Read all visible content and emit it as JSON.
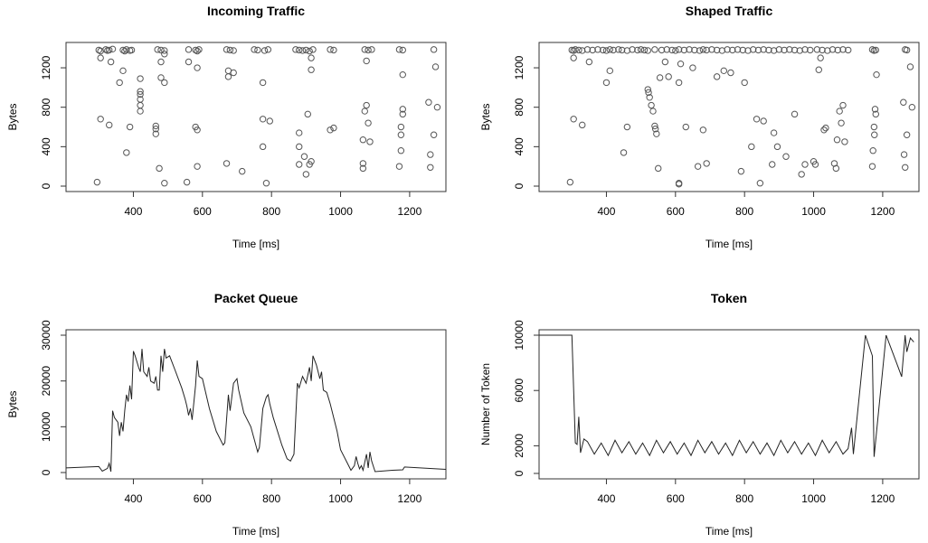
{
  "chart_data": [
    {
      "type": "scatter",
      "title": "Incoming Traffic",
      "xlabel": "Time [ms]",
      "ylabel": "Bytes",
      "x": [
        300,
        305,
        320,
        325,
        330,
        340,
        370,
        375,
        380,
        390,
        395,
        470,
        480,
        490,
        560,
        580,
        585,
        590,
        670,
        680,
        690,
        750,
        760,
        780,
        790,
        870,
        880,
        890,
        900,
        910,
        920,
        970,
        980,
        1070,
        1080,
        1090,
        1170,
        1180,
        1270,
        295,
        305,
        305,
        330,
        335,
        360,
        370,
        380,
        390,
        420,
        420,
        420,
        420,
        420,
        420,
        465,
        465,
        465,
        475,
        480,
        480,
        490,
        490,
        490,
        555,
        560,
        580,
        585,
        585,
        585,
        670,
        675,
        675,
        690,
        715,
        775,
        775,
        775,
        785,
        795,
        880,
        880,
        880,
        895,
        900,
        905,
        910,
        915,
        915,
        915,
        970,
        980,
        1065,
        1065,
        1065,
        1070,
        1075,
        1075,
        1080,
        1085,
        1170,
        1175,
        1175,
        1175,
        1180,
        1180,
        1180,
        1255,
        1260,
        1260,
        1270,
        1275,
        1280
      ],
      "values": [
        1380,
        1370,
        1385,
        1375,
        1380,
        1390,
        1380,
        1370,
        1385,
        1375,
        1380,
        1385,
        1380,
        1375,
        1385,
        1380,
        1370,
        1385,
        1385,
        1380,
        1375,
        1385,
        1380,
        1375,
        1385,
        1385,
        1380,
        1375,
        1380,
        1370,
        1385,
        1385,
        1380,
        1385,
        1380,
        1385,
        1385,
        1380,
        1385,
        40,
        680,
        1300,
        620,
        1260,
        1050,
        1170,
        340,
        600,
        1090,
        960,
        930,
        880,
        820,
        760,
        610,
        580,
        530,
        180,
        1260,
        1100,
        1050,
        30,
        1340,
        40,
        1260,
        600,
        570,
        1200,
        200,
        230,
        1170,
        1110,
        1150,
        150,
        1050,
        680,
        400,
        30,
        660,
        540,
        400,
        220,
        300,
        120,
        730,
        220,
        1300,
        1180,
        250,
        570,
        590,
        470,
        230,
        180,
        760,
        820,
        1270,
        640,
        450,
        200,
        360,
        600,
        520,
        780,
        730,
        1130,
        850,
        320,
        190,
        520,
        1210,
        800
      ],
      "color": "#555555",
      "xlim": [
        205,
        1305
      ],
      "ylim": [
        -55,
        1457
      ],
      "xticks": [
        400,
        600,
        800,
        1000,
        1200
      ],
      "yticks": [
        0,
        400,
        800,
        1200
      ]
    },
    {
      "type": "scatter",
      "title": "Shaped Traffic",
      "xlabel": "Time [ms]",
      "ylabel": "Bytes",
      "x": [
        300,
        305,
        310,
        320,
        330,
        345,
        360,
        375,
        390,
        400,
        410,
        420,
        435,
        445,
        460,
        475,
        490,
        500,
        510,
        520,
        540,
        560,
        575,
        590,
        600,
        610,
        625,
        640,
        655,
        670,
        680,
        690,
        705,
        720,
        735,
        750,
        765,
        780,
        795,
        810,
        825,
        840,
        855,
        870,
        885,
        900,
        915,
        930,
        945,
        960,
        975,
        990,
        1010,
        1025,
        1040,
        1055,
        1070,
        1085,
        1100,
        1170,
        1175,
        1180,
        1265,
        1270,
        295,
        305,
        305,
        330,
        350,
        400,
        410,
        450,
        460,
        520,
        522,
        525,
        530,
        535,
        540,
        542,
        545,
        550,
        555,
        570,
        580,
        610,
        610,
        610,
        615,
        630,
        650,
        665,
        680,
        690,
        720,
        740,
        760,
        790,
        800,
        820,
        835,
        845,
        855,
        880,
        885,
        895,
        920,
        945,
        965,
        975,
        1000,
        1005,
        1015,
        1020,
        1030,
        1035,
        1060,
        1065,
        1068,
        1075,
        1080,
        1085,
        1090,
        1170,
        1172,
        1175,
        1176,
        1178,
        1180,
        1182,
        1260,
        1262,
        1265,
        1270,
        1280,
        1285
      ],
      "values": [
        1380,
        1375,
        1385,
        1380,
        1375,
        1385,
        1380,
        1385,
        1380,
        1375,
        1385,
        1380,
        1385,
        1380,
        1375,
        1385,
        1380,
        1385,
        1380,
        1375,
        1385,
        1380,
        1385,
        1380,
        1375,
        1385,
        1380,
        1385,
        1380,
        1375,
        1385,
        1380,
        1385,
        1380,
        1375,
        1385,
        1380,
        1385,
        1380,
        1375,
        1385,
        1380,
        1385,
        1380,
        1375,
        1385,
        1380,
        1385,
        1380,
        1375,
        1385,
        1380,
        1385,
        1380,
        1375,
        1385,
        1380,
        1385,
        1380,
        1385,
        1375,
        1380,
        1385,
        1380,
        40,
        680,
        1300,
        620,
        1260,
        1050,
        1170,
        340,
        600,
        980,
        950,
        900,
        820,
        760,
        610,
        580,
        530,
        180,
        1100,
        1260,
        1110,
        30,
        20,
        1050,
        1240,
        600,
        1200,
        200,
        570,
        230,
        1110,
        1170,
        1150,
        150,
        1050,
        400,
        680,
        30,
        660,
        220,
        540,
        400,
        300,
        730,
        120,
        220,
        250,
        220,
        1180,
        1300,
        570,
        590,
        230,
        180,
        470,
        760,
        640,
        820,
        450,
        200,
        360,
        600,
        520,
        780,
        730,
        1130,
        850,
        320,
        190,
        520,
        1210,
        800
      ],
      "color": "#555555",
      "xlim": [
        205,
        1305
      ],
      "ylim": [
        -55,
        1457
      ],
      "xticks": [
        400,
        600,
        800,
        1000,
        1200
      ],
      "yticks": [
        0,
        400,
        800,
        1200
      ]
    },
    {
      "type": "line",
      "title": "Packet Queue",
      "xlabel": "Time [ms]",
      "ylabel": "Bytes",
      "x": [
        205,
        300,
        310,
        325,
        330,
        335,
        340,
        345,
        355,
        360,
        365,
        370,
        375,
        380,
        385,
        390,
        395,
        400,
        405,
        415,
        420,
        425,
        430,
        440,
        445,
        450,
        460,
        465,
        470,
        475,
        480,
        485,
        490,
        495,
        505,
        520,
        540,
        550,
        555,
        560,
        565,
        570,
        580,
        585,
        590,
        600,
        620,
        640,
        660,
        665,
        675,
        680,
        690,
        700,
        705,
        720,
        740,
        760,
        765,
        775,
        785,
        790,
        795,
        805,
        830,
        845,
        855,
        865,
        875,
        880,
        890,
        900,
        910,
        915,
        920,
        930,
        940,
        945,
        950,
        960,
        970,
        990,
        1000,
        1020,
        1030,
        1040,
        1045,
        1050,
        1055,
        1060,
        1065,
        1075,
        1080,
        1085,
        1090,
        1100,
        1150,
        1180,
        1185,
        1305
      ],
      "values": [
        1000,
        1300,
        300,
        900,
        2000,
        200,
        13500,
        12000,
        11000,
        8000,
        11000,
        9000,
        13500,
        17000,
        15500,
        19000,
        16000,
        26500,
        25500,
        23000,
        22000,
        27000,
        22000,
        21000,
        23000,
        20000,
        19500,
        21000,
        18000,
        18000,
        25500,
        22000,
        27000,
        25000,
        25500,
        22500,
        18500,
        16000,
        14500,
        12500,
        14000,
        11500,
        19000,
        24500,
        21000,
        20500,
        14000,
        9000,
        6000,
        6500,
        17000,
        13500,
        19500,
        20500,
        18000,
        13000,
        10000,
        4500,
        5500,
        14000,
        16500,
        17000,
        15000,
        12000,
        6000,
        3000,
        2500,
        4000,
        19500,
        18500,
        21000,
        19500,
        23000,
        20000,
        25500,
        23500,
        20500,
        22000,
        18000,
        17500,
        15000,
        9000,
        5000,
        2000,
        500,
        1500,
        3500,
        2000,
        800,
        1500,
        500,
        4000,
        1000,
        4500,
        2500,
        200,
        500,
        600,
        1200,
        700
      ],
      "color": "#222222",
      "xlim": [
        205,
        1305
      ],
      "ylim": [
        -1382,
        31184
      ],
      "xticks": [
        400,
        600,
        800,
        1000,
        1200
      ],
      "yticks": [
        0,
        10000,
        20000,
        30000
      ]
    },
    {
      "type": "line",
      "title": "Token",
      "xlabel": "Time [ms]",
      "ylabel": "Number of Token",
      "x": [
        205,
        300,
        310,
        315,
        320,
        325,
        335,
        345,
        365,
        385,
        405,
        425,
        445,
        465,
        485,
        505,
        525,
        545,
        565,
        585,
        605,
        625,
        645,
        665,
        685,
        705,
        725,
        745,
        765,
        785,
        805,
        825,
        845,
        865,
        885,
        905,
        925,
        945,
        965,
        985,
        1005,
        1025,
        1045,
        1065,
        1085,
        1100,
        1110,
        1115,
        1150,
        1170,
        1175,
        1210,
        1240,
        1255,
        1265,
        1270,
        1280,
        1290
      ],
      "values": [
        10000,
        10000,
        2200,
        2100,
        4100,
        1500,
        2500,
        2300,
        1400,
        2200,
        1300,
        2400,
        1500,
        2300,
        1400,
        2200,
        1300,
        2400,
        1500,
        2300,
        1400,
        2200,
        1300,
        2400,
        1500,
        2300,
        1400,
        2200,
        1300,
        2400,
        1500,
        2300,
        1400,
        2200,
        1300,
        2400,
        1500,
        2300,
        1400,
        2200,
        1300,
        2400,
        1500,
        2300,
        1400,
        1800,
        3300,
        1400,
        10000,
        8500,
        1200,
        10000,
        8000,
        7000,
        10000,
        8800,
        9800,
        9500
      ],
      "color": "#222222",
      "xlim": [
        205,
        1305
      ],
      "ylim": [
        -392,
        10392
      ],
      "xticks": [
        400,
        600,
        800,
        1000,
        1200
      ],
      "yticks": [
        0,
        2000,
        6000,
        10000
      ]
    }
  ]
}
